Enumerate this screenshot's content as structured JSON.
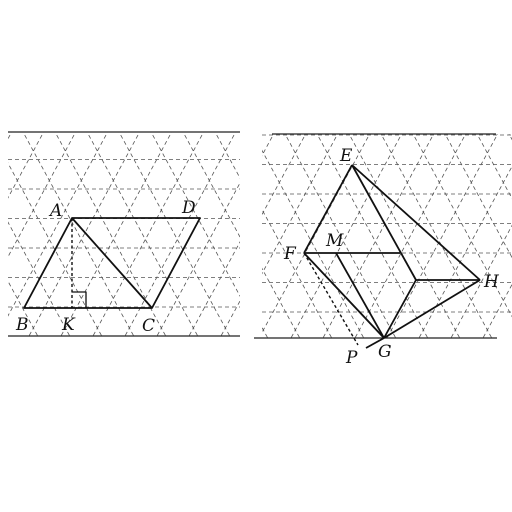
{
  "left_figure": {
    "labels": {
      "A": "A",
      "D": "D",
      "B": "B",
      "K": "K",
      "C": "C"
    }
  },
  "right_figure": {
    "labels": {
      "E": "E",
      "M": "M",
      "F": "F",
      "H": "H",
      "P": "P",
      "G": "G"
    }
  }
}
